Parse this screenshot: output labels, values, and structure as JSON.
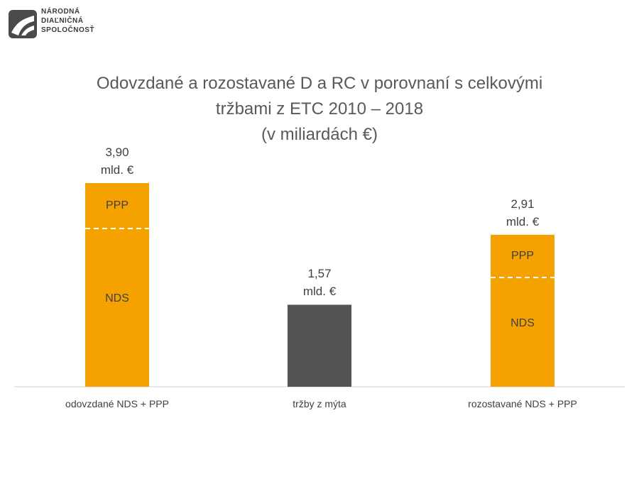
{
  "logo": {
    "text": "NÁRODNÁ\nDIAĽNIČNÁ\nSPOLOČNOSŤ"
  },
  "chart_data": {
    "type": "bar",
    "title": "Odovzdané a rozostavané D a RC v porovnaní s celkovými\ntržbami z ETC 2010 – 2018\n(v miliardách €)",
    "categories": [
      "odovzdané NDS + PPP",
      "tržby z mýta",
      "rozostavané NDS + PPP"
    ],
    "values": [
      3.9,
      1.57,
      2.91
    ],
    "value_labels": [
      "3,90\nmld. €",
      "1,57\nmld. €",
      "2,91\nmld. €"
    ],
    "colors": [
      "#f5a100",
      "#545454",
      "#f5a100"
    ],
    "segments": [
      {
        "name": "NDS",
        "values": [
          3.03,
          null,
          2.09
        ]
      },
      {
        "name": "PPP",
        "values": [
          0.87,
          null,
          0.82
        ]
      }
    ],
    "ylim": [
      0,
      4
    ]
  }
}
